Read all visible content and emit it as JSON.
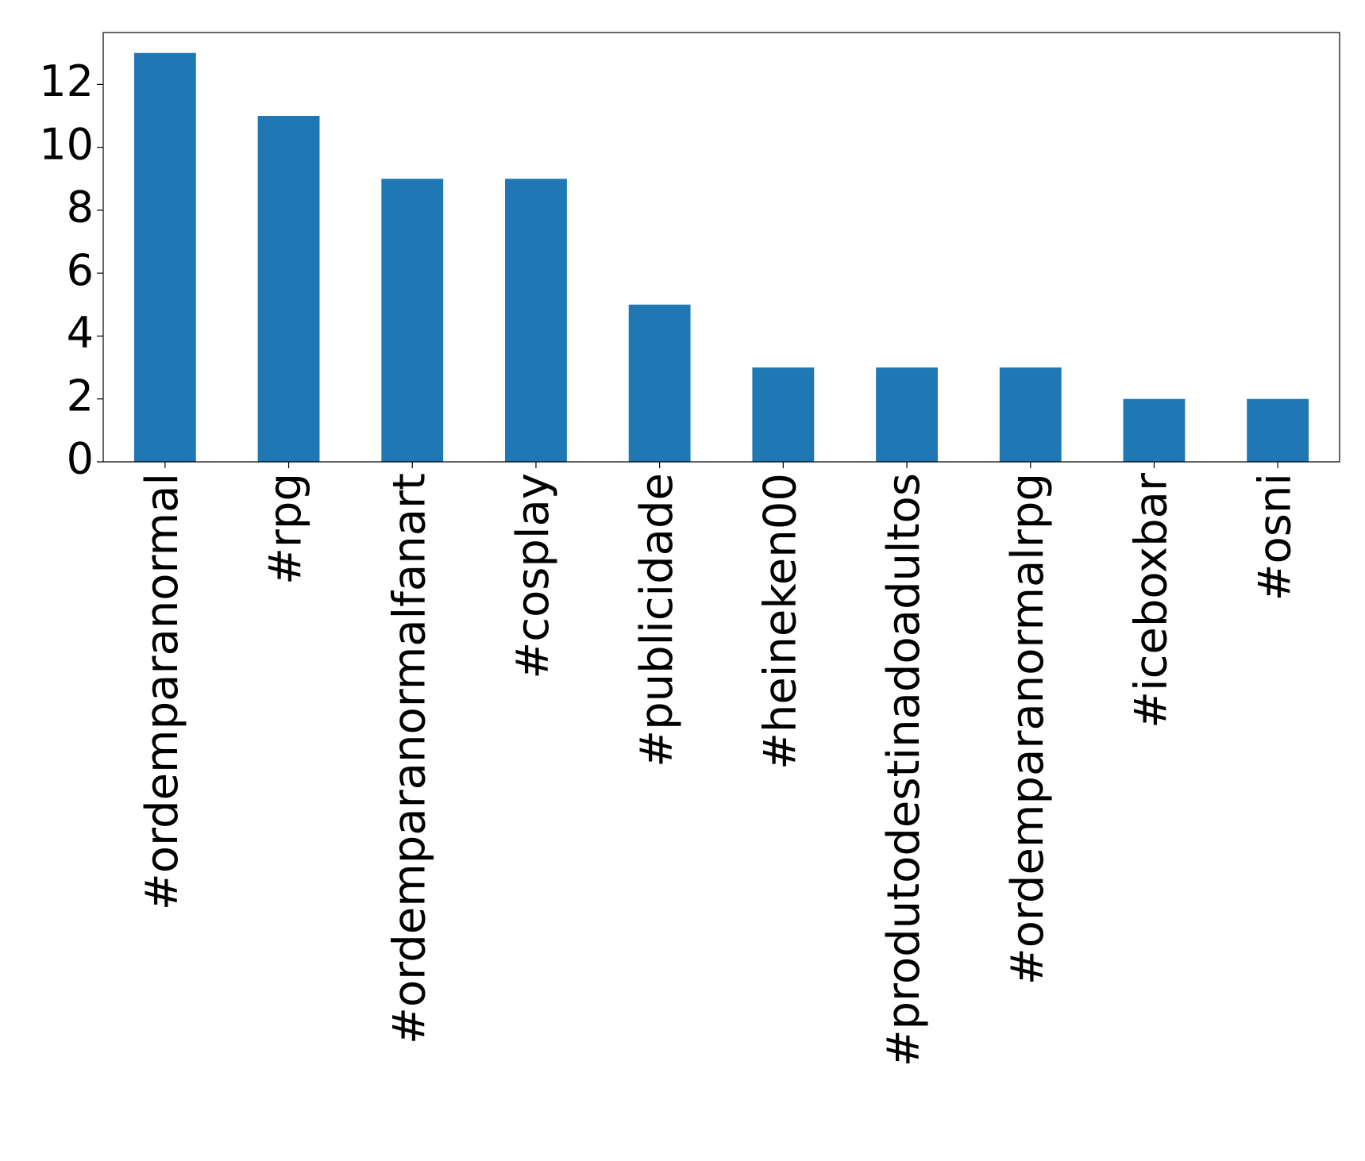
{
  "chart_data": {
    "type": "bar",
    "categories": [
      "#ordemparanormal",
      "#rpg",
      "#ordemparanormalfanart",
      "#cosplay",
      "#publicidade",
      "#heineken00",
      "#produtodestinadoadultos",
      "#ordemparanormalrpg",
      "#iceboxbar",
      "#osni"
    ],
    "values": [
      13,
      11,
      9,
      9,
      5,
      3,
      3,
      3,
      2,
      2
    ],
    "color": "#1f77b4",
    "ylim": [
      0,
      13.65
    ],
    "yticks": [
      0,
      2,
      4,
      6,
      8,
      10,
      12
    ],
    "grid": false
  }
}
